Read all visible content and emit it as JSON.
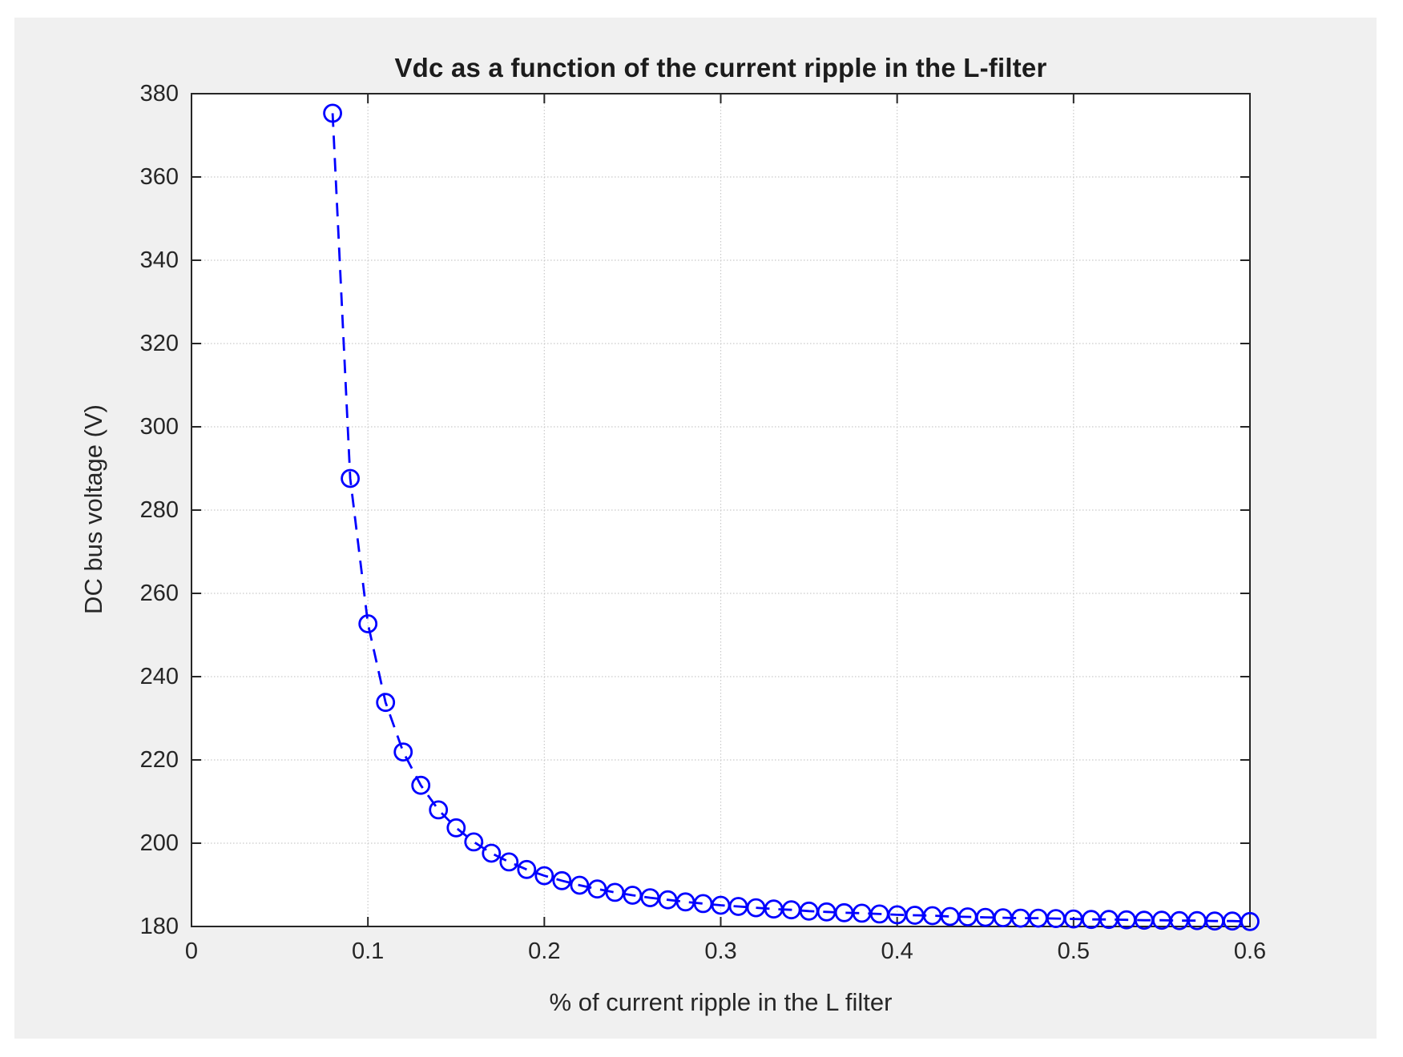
{
  "page": {
    "background": "#ffffff"
  },
  "figure": {
    "background": "#f0f0f0"
  },
  "chart_data": {
    "type": "line",
    "title": "Vdc as a function of the current ripple in the L-filter",
    "xlabel": "% of current ripple in the L filter",
    "ylabel": "DC bus voltage (V)",
    "xlim": [
      0,
      0.6
    ],
    "ylim": [
      180,
      380
    ],
    "x_ticks": [
      0,
      0.1,
      0.2,
      0.3,
      0.4,
      0.5,
      0.6
    ],
    "x_tick_labels": [
      "0",
      "0.1",
      "0.2",
      "0.3",
      "0.4",
      "0.5",
      "0.6"
    ],
    "y_ticks": [
      180,
      200,
      220,
      240,
      260,
      280,
      300,
      320,
      340,
      360,
      380
    ],
    "y_tick_labels": [
      "180",
      "200",
      "220",
      "240",
      "260",
      "280",
      "300",
      "320",
      "340",
      "360",
      "380"
    ],
    "grid": "on",
    "grid_line_style": "dotted",
    "legend": "none",
    "colors": {
      "plot_background": "#ffffff",
      "axes_box": "#262626",
      "grid": "#c9c9c9",
      "text": "#262626",
      "series_blue": "#0000ff"
    },
    "series": [
      {
        "name": "Vdc",
        "color": "#0000ff",
        "line_style": "dashed",
        "marker": "circle",
        "marker_fill": "none",
        "x": [
          0.08,
          0.09,
          0.1,
          0.11,
          0.12,
          0.13,
          0.14,
          0.15,
          0.16,
          0.17,
          0.18,
          0.19,
          0.2,
          0.21,
          0.22,
          0.23,
          0.24,
          0.25,
          0.26,
          0.27,
          0.28,
          0.29,
          0.3,
          0.31,
          0.32,
          0.33,
          0.34,
          0.35,
          0.36,
          0.37,
          0.38,
          0.39,
          0.4,
          0.41,
          0.42,
          0.43,
          0.44,
          0.45,
          0.46,
          0.47,
          0.48,
          0.49,
          0.5,
          0.51,
          0.52,
          0.53,
          0.54,
          0.55,
          0.56,
          0.57,
          0.58,
          0.59,
          0.6
        ],
        "y": [
          375.3,
          287.6,
          252.7,
          233.8,
          221.9,
          213.9,
          208.0,
          203.7,
          200.3,
          197.6,
          195.5,
          193.7,
          192.2,
          191.0,
          189.9,
          189.0,
          188.2,
          187.5,
          186.9,
          186.4,
          185.9,
          185.5,
          185.1,
          184.8,
          184.5,
          184.2,
          184.0,
          183.7,
          183.5,
          183.3,
          183.2,
          183.0,
          182.8,
          182.7,
          182.6,
          182.4,
          182.3,
          182.2,
          182.1,
          182.0,
          182.0,
          181.9,
          181.8,
          181.7,
          181.7,
          181.6,
          181.5,
          181.5,
          181.4,
          181.4,
          181.3,
          181.3,
          181.2
        ]
      }
    ]
  }
}
